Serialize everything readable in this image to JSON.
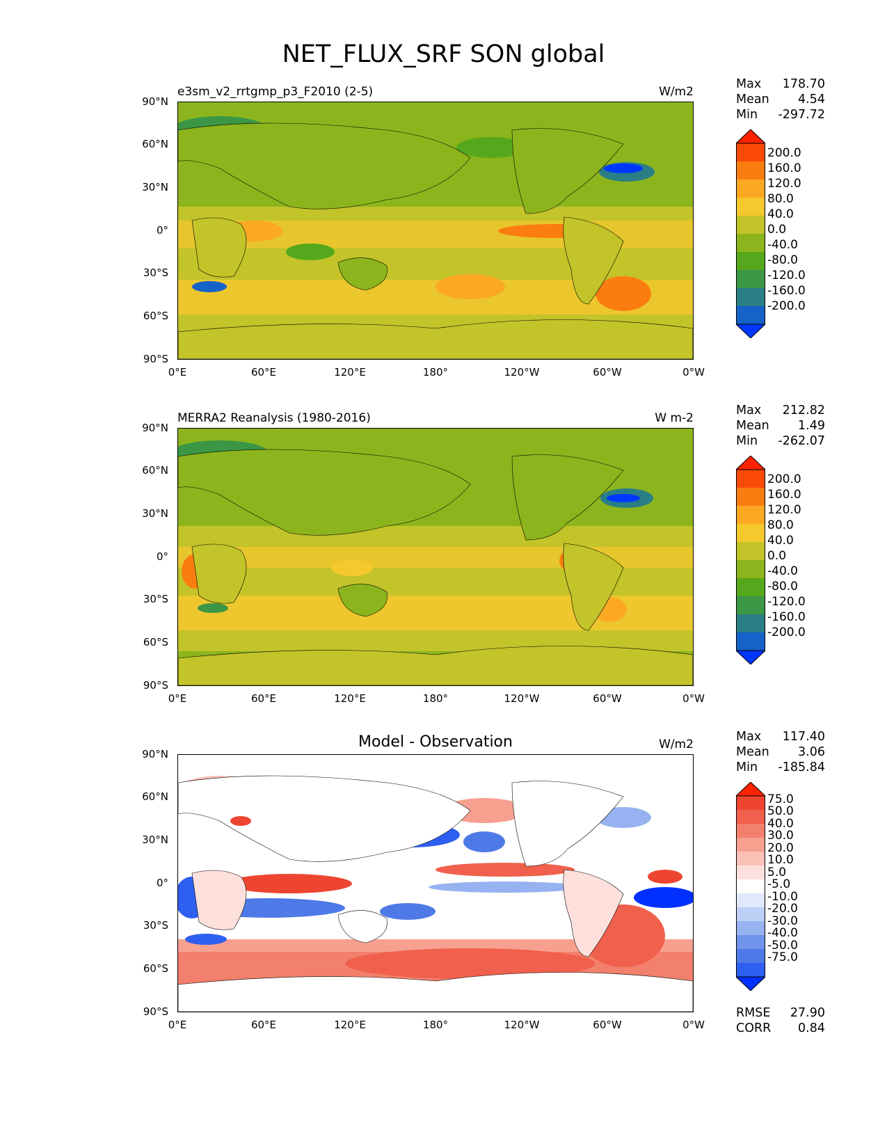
{
  "figure": {
    "title": "NET_FLUX_SRF SON global"
  },
  "axes": {
    "lat_labels": [
      "90°N",
      "60°N",
      "30°N",
      "0°",
      "30°S",
      "60°S",
      "90°S"
    ],
    "lon_labels": [
      "0°E",
      "60°E",
      "120°E",
      "180°",
      "120°W",
      "60°W",
      "0°W"
    ]
  },
  "panels": [
    {
      "title": "e3sm_v2_rrtgmp_p3_F2010 (2-5)",
      "units": "W/m2",
      "stats": {
        "max_label": "Max",
        "max": "178.70",
        "mean_label": "Mean",
        "mean": "4.54",
        "min_label": "Min",
        "min": "-297.72"
      },
      "colorbar_labels": [
        "200.0",
        "160.0",
        "120.0",
        "80.0",
        "40.0",
        "0.0",
        "-40.0",
        "-80.0",
        "-120.0",
        "-160.0",
        "-200.0"
      ]
    },
    {
      "title": "MERRA2 Reanalysis (1980-2016)",
      "units": "W m-2",
      "stats": {
        "max_label": "Max",
        "max": "212.82",
        "mean_label": "Mean",
        "mean": "1.49",
        "min_label": "Min",
        "min": "-262.07"
      },
      "colorbar_labels": [
        "200.0",
        "160.0",
        "120.0",
        "80.0",
        "40.0",
        "0.0",
        "-40.0",
        "-80.0",
        "-120.0",
        "-160.0",
        "-200.0"
      ]
    },
    {
      "title": "Model - Observation",
      "units": "W/m2",
      "stats": {
        "max_label": "Max",
        "max": "117.40",
        "mean_label": "Mean",
        "mean": "3.06",
        "min_label": "Min",
        "min": "-185.84"
      },
      "colorbar_labels": [
        "75.0",
        "50.0",
        "40.0",
        "30.0",
        "20.0",
        "10.0",
        "5.0",
        "-5.0",
        "-10.0",
        "-20.0",
        "-30.0",
        "-40.0",
        "-50.0",
        "-75.0"
      ],
      "metrics": {
        "rmse_label": "RMSE",
        "rmse": "27.90",
        "corr_label": "CORR",
        "corr": "0.84"
      }
    }
  ],
  "colors": {
    "flux_scale": [
      "#0037ff",
      "#1562c8",
      "#2a7e86",
      "#3b9745",
      "#55a81c",
      "#8cb51d",
      "#c3c32a",
      "#f5c82e",
      "#fca823",
      "#fb7d10",
      "#fa4a06",
      "#ff2200"
    ],
    "diff_scale": [
      "#0030ff",
      "#2e5ff0",
      "#4e7ae8",
      "#6f94ea",
      "#97b2f0",
      "#bdd0f6",
      "#e0e8fb",
      "#ffffff",
      "#fde0dc",
      "#fbc0b6",
      "#f7a090",
      "#f3806c",
      "#f0604c",
      "#ee4530",
      "#ff2200"
    ]
  }
}
